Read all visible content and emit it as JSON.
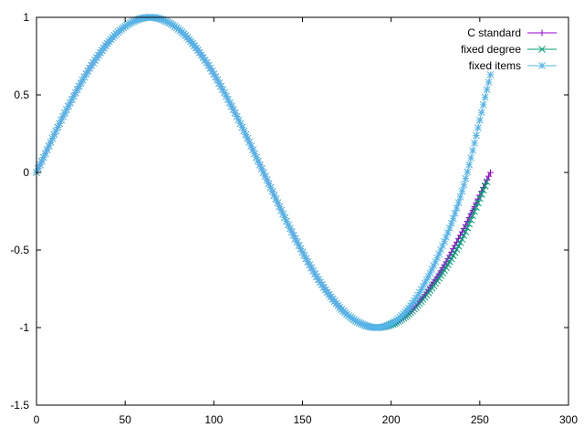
{
  "chart_data": {
    "type": "line",
    "title": "",
    "xlabel": "",
    "ylabel": "",
    "xlim": [
      0,
      300
    ],
    "ylim": [
      -1.5,
      1
    ],
    "x_ticks": [
      0,
      50,
      100,
      150,
      200,
      250,
      300
    ],
    "y_ticks": [
      -1.5,
      -1,
      -0.5,
      0,
      0.5,
      1
    ],
    "x_tick_labels": [
      "0",
      "50",
      "100",
      "150",
      "200",
      "250",
      "300"
    ],
    "y_tick_labels": [
      "-1.5",
      "-1",
      "-0.5",
      "0",
      "0.5",
      "1"
    ],
    "grid": false,
    "legend_position": "top-right",
    "series": [
      {
        "name": "C standard",
        "color": "#9400d3",
        "marker": "plus",
        "x": [
          0,
          16,
          32,
          48,
          64,
          80,
          96,
          112,
          128,
          144,
          160,
          176,
          192,
          208,
          224,
          240,
          256
        ],
        "y": [
          0,
          0.383,
          0.707,
          0.924,
          1,
          0.924,
          0.707,
          0.383,
          0,
          -0.383,
          -0.707,
          -0.924,
          -1,
          -0.924,
          -0.707,
          -0.383,
          0
        ]
      },
      {
        "name": "fixed degree",
        "color": "#009e73",
        "marker": "cross",
        "x": [
          0,
          16,
          32,
          48,
          64,
          80,
          96,
          112,
          128,
          144,
          160,
          176,
          192,
          208,
          224,
          240,
          254
        ],
        "y": [
          0,
          0.383,
          0.707,
          0.924,
          1,
          0.924,
          0.707,
          0.383,
          0,
          -0.383,
          -0.707,
          -0.924,
          -1,
          -0.93,
          -0.73,
          -0.43,
          -0.06
        ]
      },
      {
        "name": "fixed items",
        "color": "#56b4e9",
        "marker": "star",
        "x": [
          0,
          16,
          32,
          48,
          64,
          80,
          96,
          112,
          128,
          144,
          160,
          176,
          192,
          208,
          224,
          240,
          256
        ],
        "y": [
          0,
          0.383,
          0.707,
          0.924,
          1,
          0.924,
          0.707,
          0.383,
          0,
          -0.383,
          -0.707,
          -0.924,
          -1,
          -0.9,
          -0.6,
          -0.12,
          0.63
        ]
      }
    ]
  }
}
